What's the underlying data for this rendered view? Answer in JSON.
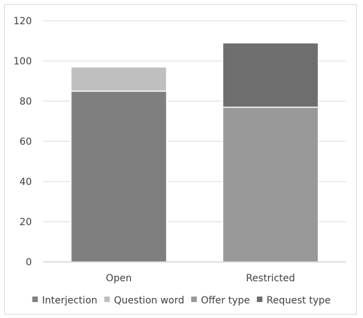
{
  "chart_data": {
    "type": "bar",
    "stacked": true,
    "categories": [
      "Open",
      "Restricted"
    ],
    "series": [
      {
        "name": "Interjection",
        "values": [
          85,
          0
        ],
        "color": "#7f7f7f"
      },
      {
        "name": "Question word",
        "values": [
          12,
          0
        ],
        "color": "#bfbfbf"
      },
      {
        "name": "Offer type",
        "values": [
          0,
          77
        ],
        "color": "#999999"
      },
      {
        "name": "Request type",
        "values": [
          0,
          32
        ],
        "color": "#6e6e6e"
      }
    ],
    "ylim": [
      0,
      120
    ],
    "yticks": [
      0,
      20,
      40,
      60,
      80,
      100,
      120
    ],
    "grid": true,
    "legend": "bottom"
  }
}
